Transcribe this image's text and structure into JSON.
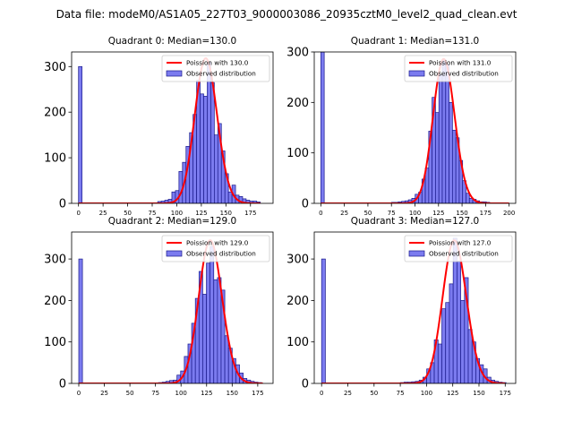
{
  "figure": {
    "title": "Data file: modeM0/AS1A05_227T03_9000003086_20935cztM0_level2_quad_clean.evt"
  },
  "chart_data": [
    {
      "type": "bar",
      "title": "Quadrant 0: Median=130.0",
      "median": 130.0,
      "xlim": [
        -7,
        198
      ],
      "ylim": [
        0,
        332
      ],
      "xticks": [
        0,
        25,
        50,
        75,
        100,
        125,
        150,
        175
      ],
      "yticks": [
        0,
        100,
        200,
        300
      ],
      "bin_width": 3.6,
      "bins": [
        [
          0,
          300
        ],
        [
          80.6,
          4
        ],
        [
          84.2,
          5
        ],
        [
          87.8,
          7
        ],
        [
          91.4,
          9
        ],
        [
          95,
          25
        ],
        [
          98.6,
          28
        ],
        [
          102.2,
          70
        ],
        [
          105.8,
          90
        ],
        [
          109.4,
          125
        ],
        [
          113,
          155
        ],
        [
          116.6,
          195
        ],
        [
          120.2,
          270
        ],
        [
          123.8,
          240
        ],
        [
          127.4,
          235
        ],
        [
          131,
          310
        ],
        [
          134.6,
          265
        ],
        [
          138.2,
          150
        ],
        [
          141.8,
          175
        ],
        [
          145.4,
          115
        ],
        [
          149,
          65
        ],
        [
          152.6,
          25
        ],
        [
          156.2,
          40
        ],
        [
          159.8,
          18
        ],
        [
          163.4,
          15
        ],
        [
          167,
          10
        ],
        [
          170.6,
          7
        ],
        [
          174.2,
          5
        ],
        [
          177.8,
          5
        ],
        [
          181.4,
          3
        ]
      ],
      "poisson_peak": 318,
      "poisson_range": [
        0,
        185
      ],
      "legend": {
        "location": "upper-right",
        "line_label": "Poission with 130.0",
        "bar_label": "Observed distribution"
      },
      "colors": {
        "line": "#ff0000",
        "bar_fill": "#7b7bef",
        "bar_edge": "#1a1a8c"
      }
    },
    {
      "type": "bar",
      "title": "Quadrant 1: Median=131.0",
      "median": 131.0,
      "xlim": [
        -7,
        207
      ],
      "ylim": [
        0,
        300
      ],
      "xticks": [
        0,
        25,
        50,
        75,
        100,
        125,
        150,
        175,
        200
      ],
      "yticks": [
        0,
        100,
        200,
        300
      ],
      "bin_width": 3.6,
      "bins": [
        [
          0,
          300
        ],
        [
          75,
          2
        ],
        [
          78.6,
          2
        ],
        [
          82.2,
          3
        ],
        [
          85.8,
          4
        ],
        [
          89.4,
          5
        ],
        [
          93,
          7
        ],
        [
          96.6,
          10
        ],
        [
          100.2,
          18
        ],
        [
          103.8,
          22
        ],
        [
          107.4,
          48
        ],
        [
          111,
          70
        ],
        [
          114.6,
          143
        ],
        [
          118.2,
          210
        ],
        [
          121.8,
          180
        ],
        [
          125.4,
          255
        ],
        [
          129,
          285
        ],
        [
          132.6,
          275
        ],
        [
          136.2,
          200
        ],
        [
          139.8,
          145
        ],
        [
          143.4,
          130
        ],
        [
          147,
          85
        ],
        [
          150.6,
          45
        ],
        [
          154.2,
          20
        ],
        [
          157.8,
          10
        ],
        [
          161.4,
          8
        ],
        [
          165,
          5
        ],
        [
          168.6,
          3
        ],
        [
          172.2,
          3
        ],
        [
          175.8,
          2
        ]
      ],
      "poisson_peak": 286,
      "poisson_range": [
        0,
        200
      ],
      "legend": {
        "location": "upper-right",
        "line_label": "Poission with 131.0",
        "bar_label": "Observed distribution"
      },
      "colors": {
        "line": "#ff0000",
        "bar_fill": "#7b7bef",
        "bar_edge": "#1a1a8c"
      }
    },
    {
      "type": "bar",
      "title": "Quadrant 2: Median=129.0",
      "median": 129.0,
      "xlim": [
        -7,
        190
      ],
      "ylim": [
        0,
        365
      ],
      "xticks": [
        0,
        25,
        50,
        75,
        100,
        125,
        150,
        175
      ],
      "yticks": [
        0,
        100,
        200,
        300
      ],
      "bin_width": 3.6,
      "bins": [
        [
          0,
          300
        ],
        [
          78,
          2
        ],
        [
          81.6,
          3
        ],
        [
          85.2,
          5
        ],
        [
          88.8,
          7
        ],
        [
          92.4,
          8
        ],
        [
          96,
          20
        ],
        [
          99.6,
          30
        ],
        [
          103.2,
          65
        ],
        [
          106.8,
          95
        ],
        [
          110.4,
          145
        ],
        [
          114,
          205
        ],
        [
          117.6,
          270
        ],
        [
          121.2,
          215
        ],
        [
          124.8,
          290
        ],
        [
          128.4,
          330
        ],
        [
          132,
          250
        ],
        [
          135.6,
          255
        ],
        [
          139.2,
          225
        ],
        [
          142.8,
          115
        ],
        [
          146.4,
          85
        ],
        [
          150,
          60
        ],
        [
          153.6,
          45
        ],
        [
          157.2,
          25
        ],
        [
          160.8,
          12
        ],
        [
          164.4,
          8
        ],
        [
          168,
          5
        ],
        [
          171.6,
          3
        ],
        [
          175.2,
          2
        ]
      ],
      "poisson_peak": 345,
      "poisson_range": [
        0,
        180
      ],
      "legend": {
        "location": "upper-right",
        "line_label": "Poission with 129.0",
        "bar_label": "Observed distribution"
      },
      "colors": {
        "line": "#ff0000",
        "bar_fill": "#7b7bef",
        "bar_edge": "#1a1a8c"
      }
    },
    {
      "type": "bar",
      "title": "Quadrant 3: Median=127.0",
      "median": 127.0,
      "xlim": [
        -7,
        185
      ],
      "ylim": [
        0,
        365
      ],
      "xticks": [
        0,
        25,
        50,
        75,
        100,
        125,
        150,
        175
      ],
      "yticks": [
        0,
        100,
        200,
        300
      ],
      "bin_width": 3.6,
      "bins": [
        [
          0,
          300
        ],
        [
          75,
          2
        ],
        [
          78.6,
          3
        ],
        [
          82.2,
          3
        ],
        [
          85.8,
          4
        ],
        [
          89.4,
          5
        ],
        [
          93,
          8
        ],
        [
          96.6,
          15
        ],
        [
          100.2,
          35
        ],
        [
          103.8,
          50
        ],
        [
          107.4,
          105
        ],
        [
          111,
          95
        ],
        [
          114.6,
          180
        ],
        [
          118.2,
          195
        ],
        [
          121.8,
          240
        ],
        [
          125.4,
          350
        ],
        [
          129,
          295
        ],
        [
          132.6,
          200
        ],
        [
          136.2,
          255
        ],
        [
          139.8,
          130
        ],
        [
          143.4,
          100
        ],
        [
          147,
          60
        ],
        [
          150.6,
          45
        ],
        [
          154.2,
          35
        ],
        [
          157.8,
          15
        ],
        [
          161.4,
          8
        ],
        [
          165,
          5
        ],
        [
          168.6,
          3
        ],
        [
          172.2,
          2
        ]
      ],
      "poisson_peak": 345,
      "poisson_range": [
        0,
        175
      ],
      "legend": {
        "location": "upper-right",
        "line_label": "Poission with 127.0",
        "bar_label": "Observed distribution"
      },
      "colors": {
        "line": "#ff0000",
        "bar_fill": "#7b7bef",
        "bar_edge": "#1a1a8c"
      }
    }
  ]
}
